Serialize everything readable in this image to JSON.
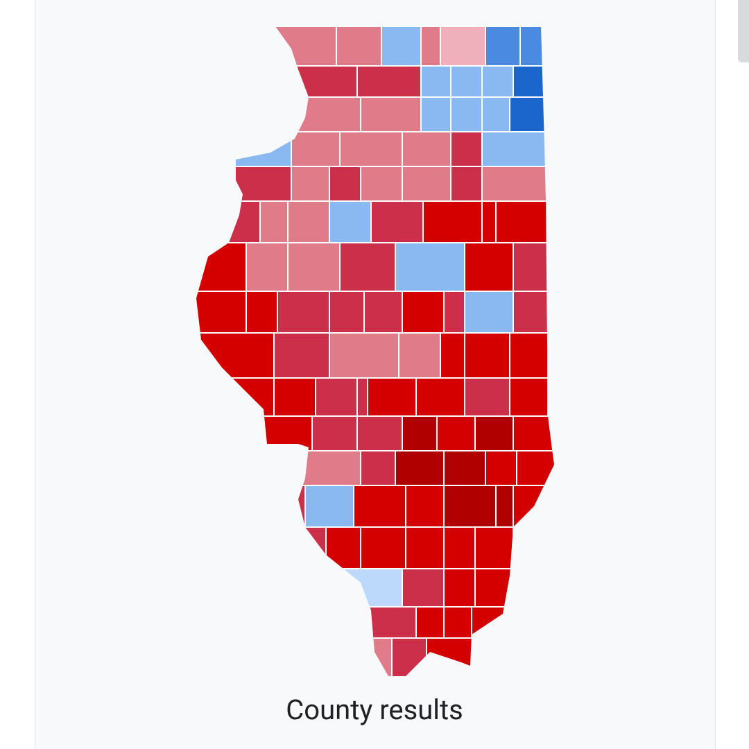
{
  "caption": "County results"
}
